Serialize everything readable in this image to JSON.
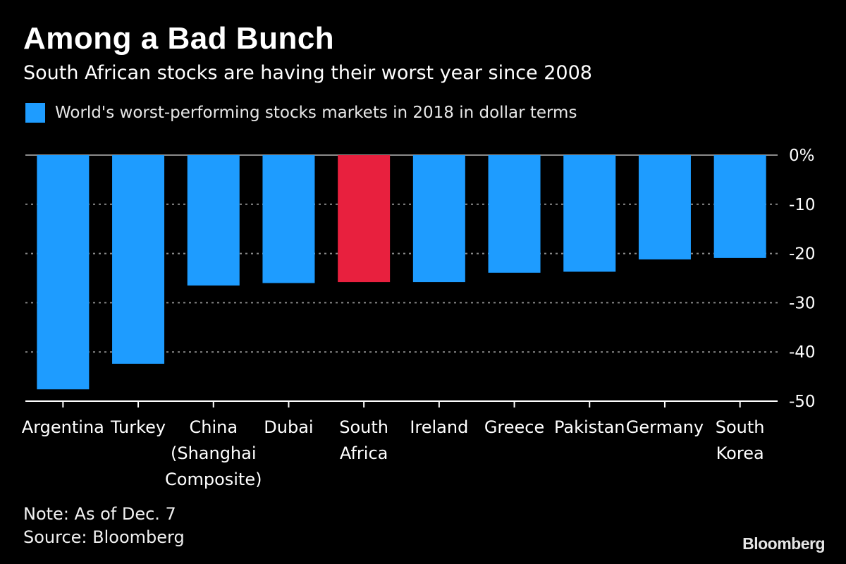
{
  "header": {
    "title": "Among a Bad Bunch",
    "subtitle": "South African stocks are having their worst year since 2008"
  },
  "legend": {
    "label": "World's worst-performing stocks markets in 2018 in dollar terms",
    "color": "#1e9cff"
  },
  "colors": {
    "bar": "#1e9cff",
    "highlight": "#e8203e",
    "axis": "#ffffff",
    "grid": "#8a8a8a"
  },
  "chart_data": {
    "type": "bar",
    "title": "Among a Bad Bunch",
    "subtitle": "South African stocks are having their worst year since 2008",
    "categories": [
      [
        "Argentina"
      ],
      [
        "Turkey"
      ],
      [
        "China",
        "(Shanghai",
        "Composite)"
      ],
      [
        "Dubai"
      ],
      [
        "South",
        "Africa"
      ],
      [
        "Ireland"
      ],
      [
        "Greece"
      ],
      [
        "Pakistan"
      ],
      [
        "Germany"
      ],
      [
        "South",
        "Korea"
      ]
    ],
    "series": [
      {
        "name": "World's worst-performing stocks markets in 2018 in dollar terms",
        "values": [
          -47.6,
          -42.4,
          -26.5,
          -26.0,
          -25.8,
          -25.8,
          -23.9,
          -23.7,
          -21.2,
          -20.9
        ]
      }
    ],
    "highlight_index": 4,
    "ylim": [
      -50,
      0
    ],
    "yticks": [
      0,
      -10,
      -20,
      -30,
      -40,
      -50
    ],
    "ytick_labels": [
      "0%",
      "-10",
      "-20",
      "-30",
      "-40",
      "-50"
    ],
    "yaxis_position": "right",
    "grid": true,
    "xlabel": "",
    "ylabel": ""
  },
  "footer": {
    "note": "Note: As of Dec. 7",
    "source": "Source: Bloomberg"
  },
  "brand": "Bloomberg"
}
